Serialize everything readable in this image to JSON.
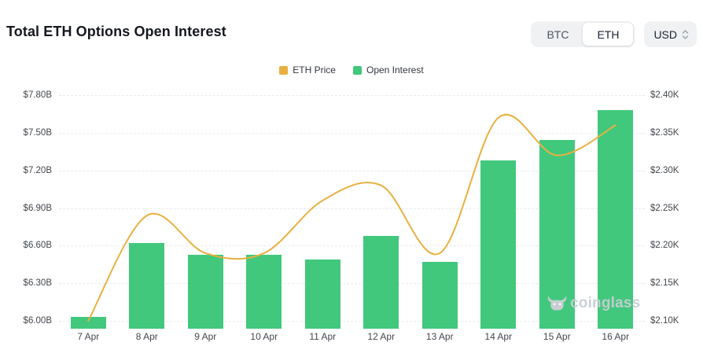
{
  "header": {
    "title": "Total ETH Options Open Interest",
    "asset_toggle": {
      "options": [
        "BTC",
        "ETH"
      ],
      "selected": "ETH"
    },
    "currency_select": {
      "value": "USD"
    }
  },
  "legend": [
    {
      "label": "ETH Price",
      "color": "#e9b041"
    },
    {
      "label": "Open Interest",
      "color": "#41c87d"
    }
  ],
  "watermark": "coinglass",
  "chart_data": {
    "type": "bar+line combo",
    "title": "Total ETH Options Open Interest",
    "categories": [
      "7 Apr",
      "8 Apr",
      "9 Apr",
      "10 Apr",
      "11 Apr",
      "12 Apr",
      "13 Apr",
      "14 Apr",
      "15 Apr",
      "16 Apr"
    ],
    "series": [
      {
        "name": "Open Interest",
        "type": "bar",
        "axis": "left",
        "color": "#41c87d",
        "unit": "USD billions",
        "values": [
          6.03,
          6.62,
          6.53,
          6.53,
          6.49,
          6.68,
          6.47,
          7.28,
          7.44,
          7.68
        ]
      },
      {
        "name": "ETH Price",
        "type": "line",
        "axis": "right",
        "color": "#e9b041",
        "smooth": true,
        "unit": "USD thousands",
        "values": [
          2.1,
          2.24,
          2.19,
          2.19,
          2.26,
          2.28,
          2.19,
          2.37,
          2.32,
          2.36
        ]
      }
    ],
    "left_axis": {
      "ticks": [
        "$7.80B",
        "$7.50B",
        "$7.20B",
        "$6.90B",
        "$6.60B",
        "$6.30B",
        "$6.00B"
      ],
      "min": 6.0,
      "max": 7.8
    },
    "right_axis": {
      "ticks": [
        "$2.40K",
        "$2.35K",
        "$2.30K",
        "$2.25K",
        "$2.20K",
        "$2.15K",
        "$2.10K"
      ],
      "min": 2.1,
      "max": 2.4
    },
    "grid": "horizontal dashed",
    "legend_position": "top-center"
  }
}
